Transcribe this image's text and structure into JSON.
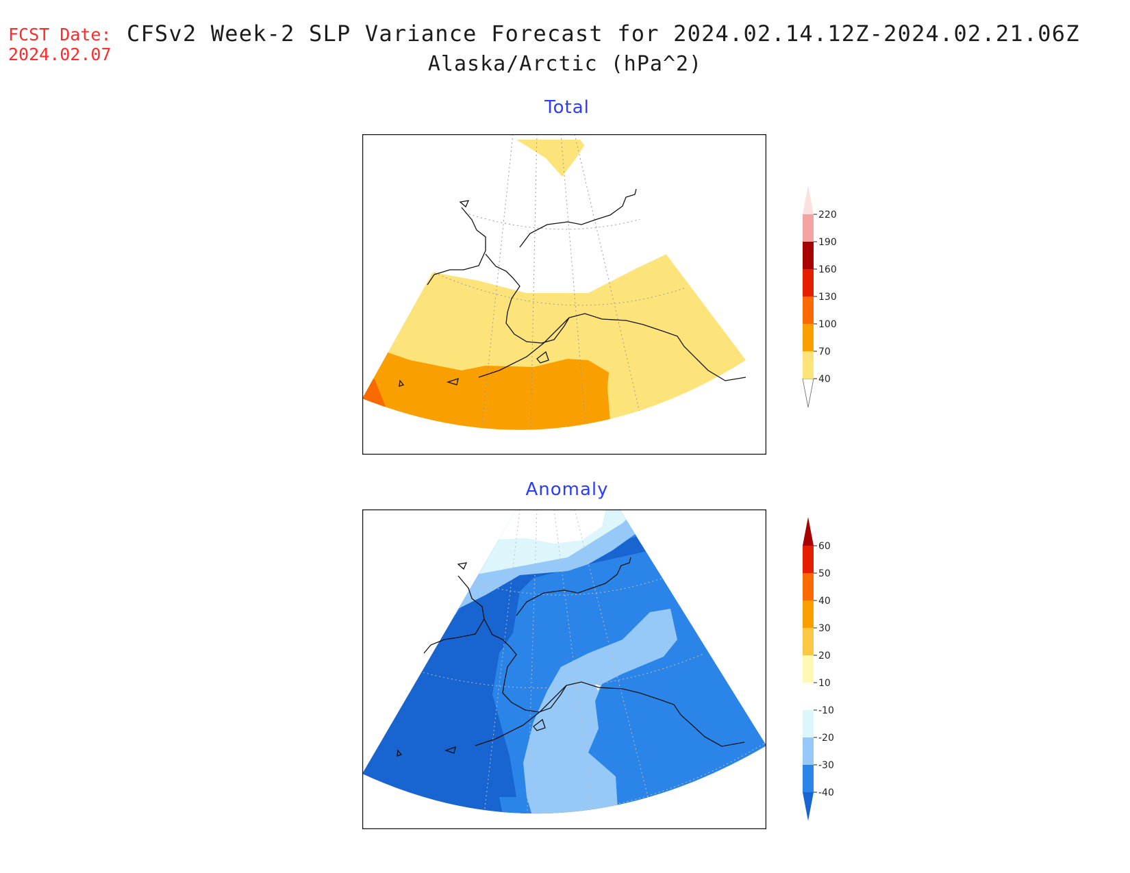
{
  "header": {
    "fcst_label": "FCST Date:",
    "fcst_date": "2024.02.07",
    "title": "CFSv2 Week-2 SLP Variance Forecast for 2024.02.14.12Z-2024.02.21.06Z",
    "subtitle": "Alaska/Arctic (hPa^2)"
  },
  "panels": [
    {
      "title": "Total",
      "colorbar": {
        "levels": [
          "40",
          "70",
          "100",
          "130",
          "160",
          "190",
          "220"
        ],
        "colors": [
          "#fde47a",
          "#fa9f00",
          "#f96a00",
          "#e31f00",
          "#a70000",
          "#f4a3a3",
          "#fce0e0"
        ]
      }
    },
    {
      "title": "Anomaly",
      "colorbar": {
        "levels": [
          "-40",
          "-30",
          "-20",
          "-10",
          "10",
          "20",
          "30",
          "40",
          "50",
          "60"
        ],
        "colors": [
          "#1864d0",
          "#2b84e8",
          "#96c9f8",
          "#dcf6fc",
          "#ffffff",
          "#fef8b6",
          "#fcc745",
          "#fa9f00",
          "#f96a00",
          "#e31f00",
          "#a70000"
        ]
      }
    }
  ]
}
